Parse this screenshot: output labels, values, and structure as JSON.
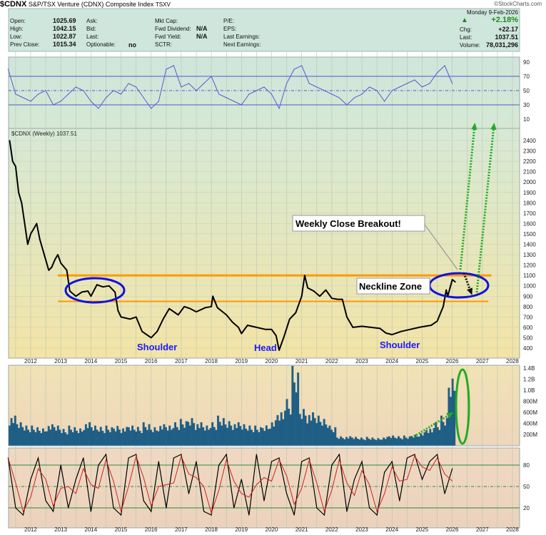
{
  "header": {
    "symbol": "$CDNX",
    "name": "S&P/TSX Venture (CDNX) Composite Index",
    "exchange": "TSXV",
    "logo": "©StockCharts.com"
  },
  "quote": {
    "open_label": "Open:",
    "open": "1025.69",
    "high_label": "High:",
    "high": "1042.15",
    "low_label": "Low:",
    "low": "1022.87",
    "prev_label": "Prev Close:",
    "prev": "1015.34",
    "ask_label": "Ask:",
    "bid_label": "Bid:",
    "last_label2": "Last:",
    "optionable_label": "Optionable:",
    "optionable": "no",
    "mktcap_label": "Mkt Cap:",
    "fwddiv_label": "Fwd Dividend:",
    "fwddiv": "N/A",
    "fwdyield_label": "Fwd Yield:",
    "fwdyield": "N/A",
    "sctr_label": "SCTR:",
    "pe_label": "P/E:",
    "eps_label": "EPS:",
    "lastearn_label": "Last Earnings:",
    "nextearn_label": "Next Earnings:",
    "date": "Monday  9-Feb-2026",
    "pct": "+2.18%",
    "chg_label": "Chg:",
    "chg": "+22.17",
    "last_label": "Last:",
    "last": "1037.51",
    "vol_label": "Volume:",
    "volume": "78,031,296",
    "up_arrow_icon": "triangle-up"
  },
  "chart_data": {
    "type": "line",
    "x_ticks": [
      "2012",
      "2013",
      "2014",
      "2015",
      "2016",
      "2017",
      "2018",
      "2019",
      "2020",
      "2021",
      "2022",
      "2023",
      "2024",
      "2025",
      "2026",
      "2027",
      "2028"
    ],
    "price": {
      "label": "$CDNX (Weekly) 1037.51",
      "scale": "linear",
      "ylim": [
        330,
        2480
      ],
      "y_ticks": [
        400,
        500,
        600,
        700,
        800,
        900,
        1000,
        1100,
        1200,
        1300,
        1400,
        1500,
        1600,
        1700,
        1800,
        1900,
        2000,
        2100,
        2200,
        2300,
        2400
      ],
      "color": "#000000",
      "points": [
        [
          2011.3,
          2400
        ],
        [
          2011.4,
          2200
        ],
        [
          2011.5,
          2150
        ],
        [
          2011.6,
          1900
        ],
        [
          2011.7,
          1800
        ],
        [
          2011.8,
          1600
        ],
        [
          2011.9,
          1400
        ],
        [
          2012.0,
          1500
        ],
        [
          2012.1,
          1550
        ],
        [
          2012.2,
          1600
        ],
        [
          2012.3,
          1450
        ],
        [
          2012.4,
          1350
        ],
        [
          2012.5,
          1250
        ],
        [
          2012.6,
          1150
        ],
        [
          2012.7,
          1180
        ],
        [
          2012.8,
          1250
        ],
        [
          2012.9,
          1300
        ],
        [
          2013.0,
          1220
        ],
        [
          2013.2,
          1150
        ],
        [
          2013.3,
          950
        ],
        [
          2013.5,
          900
        ],
        [
          2013.7,
          940
        ],
        [
          2013.9,
          950
        ],
        [
          2014.0,
          900
        ],
        [
          2014.2,
          1010
        ],
        [
          2014.4,
          990
        ],
        [
          2014.6,
          1000
        ],
        [
          2014.8,
          940
        ],
        [
          2014.9,
          760
        ],
        [
          2015.0,
          700
        ],
        [
          2015.3,
          680
        ],
        [
          2015.5,
          700
        ],
        [
          2015.7,
          560
        ],
        [
          2015.9,
          520
        ],
        [
          2016.0,
          500
        ],
        [
          2016.2,
          560
        ],
        [
          2016.4,
          680
        ],
        [
          2016.6,
          780
        ],
        [
          2016.8,
          740
        ],
        [
          2016.9,
          720
        ],
        [
          2017.1,
          800
        ],
        [
          2017.3,
          780
        ],
        [
          2017.5,
          750
        ],
        [
          2017.8,
          790
        ],
        [
          2018.0,
          800
        ],
        [
          2018.05,
          900
        ],
        [
          2018.2,
          790
        ],
        [
          2018.5,
          720
        ],
        [
          2018.7,
          650
        ],
        [
          2018.9,
          600
        ],
        [
          2019.0,
          540
        ],
        [
          2019.2,
          620
        ],
        [
          2019.5,
          600
        ],
        [
          2019.8,
          580
        ],
        [
          2020.0,
          580
        ],
        [
          2020.15,
          520
        ],
        [
          2020.25,
          380
        ],
        [
          2020.4,
          500
        ],
        [
          2020.6,
          680
        ],
        [
          2020.8,
          740
        ],
        [
          2021.0,
          900
        ],
        [
          2021.1,
          1100
        ],
        [
          2021.2,
          980
        ],
        [
          2021.4,
          950
        ],
        [
          2021.6,
          900
        ],
        [
          2021.8,
          960
        ],
        [
          2022.0,
          880
        ],
        [
          2022.2,
          870
        ],
        [
          2022.35,
          870
        ],
        [
          2022.5,
          700
        ],
        [
          2022.7,
          600
        ],
        [
          2023.0,
          610
        ],
        [
          2023.3,
          600
        ],
        [
          2023.6,
          590
        ],
        [
          2023.8,
          545
        ],
        [
          2024.0,
          530
        ],
        [
          2024.3,
          560
        ],
        [
          2024.6,
          580
        ],
        [
          2024.9,
          600
        ],
        [
          2025.1,
          610
        ],
        [
          2025.3,
          620
        ],
        [
          2025.5,
          660
        ],
        [
          2025.7,
          800
        ],
        [
          2025.8,
          960
        ],
        [
          2025.85,
          900
        ],
        [
          2026.0,
          1060
        ],
        [
          2026.1,
          1037.51
        ]
      ]
    },
    "rsi": {
      "ylim": [
        0,
        100
      ],
      "y_ticks": [
        10,
        30,
        50,
        70,
        90
      ],
      "levels": [
        30,
        50,
        70
      ],
      "color": "#5a5ad0",
      "x": [
        2011.25,
        2011.5,
        2011.75,
        2012.0,
        2012.25,
        2012.5,
        2012.75,
        2013.0,
        2013.25,
        2013.5,
        2013.75,
        2014.0,
        2014.25,
        2014.5,
        2014.75,
        2015.0,
        2015.25,
        2015.5,
        2015.75,
        2016.0,
        2016.25,
        2016.5,
        2016.75,
        2017.0,
        2017.25,
        2017.5,
        2017.75,
        2018.0,
        2018.25,
        2018.5,
        2018.75,
        2019.0,
        2019.25,
        2019.5,
        2019.75,
        2020.0,
        2020.25,
        2020.5,
        2020.75,
        2021.0,
        2021.25,
        2021.5,
        2021.75,
        2022.0,
        2022.25,
        2022.5,
        2022.75,
        2023.0,
        2023.25,
        2023.5,
        2023.75,
        2024.0,
        2024.25,
        2024.5,
        2024.75,
        2025.0,
        2025.25,
        2025.5,
        2025.75,
        2026.0
      ],
      "values": [
        80,
        45,
        40,
        35,
        45,
        50,
        30,
        35,
        45,
        55,
        50,
        35,
        25,
        40,
        50,
        45,
        60,
        55,
        40,
        25,
        35,
        80,
        85,
        55,
        60,
        50,
        60,
        70,
        45,
        40,
        35,
        30,
        45,
        50,
        55,
        45,
        25,
        60,
        80,
        85,
        60,
        55,
        50,
        45,
        40,
        30,
        40,
        45,
        55,
        50,
        35,
        50,
        55,
        60,
        65,
        55,
        60,
        75,
        85,
        60
      ]
    },
    "volume": {
      "ylim": [
        0,
        1400
      ],
      "unit": "M",
      "y_tick_labels": [
        "200M",
        "400M",
        "600M",
        "800M",
        "1.0B",
        "1.2B",
        "1.4B"
      ],
      "y_ticks": [
        200,
        400,
        600,
        800,
        1000,
        1200,
        1400
      ],
      "color": "#1f5f86",
      "values": [
        450,
        350,
        300,
        300,
        280,
        320,
        300,
        250,
        300,
        280,
        350,
        300,
        280,
        300,
        320,
        280,
        300,
        280,
        350,
        300,
        320,
        300,
        350,
        400,
        450,
        350,
        300,
        350,
        450,
        400,
        350,
        320,
        300,
        300,
        330,
        380,
        500,
        700,
        1200,
        600,
        500,
        450,
        400,
        300,
        150,
        140,
        130,
        120,
        130,
        120,
        130,
        150,
        140,
        150,
        180,
        200,
        250,
        350,
        450,
        1100
      ]
    },
    "stochastic": {
      "ylim": [
        0,
        100
      ],
      "y_ticks": [
        20,
        50,
        80
      ],
      "levels": [
        20,
        50,
        80
      ],
      "colors": [
        "#000000",
        "#d02020"
      ],
      "values": [
        90,
        20,
        10,
        60,
        90,
        30,
        15,
        80,
        20,
        60,
        90,
        15,
        80,
        95,
        20,
        10,
        90,
        95,
        30,
        15,
        85,
        20,
        90,
        95,
        40,
        85,
        15,
        10,
        80,
        95,
        20,
        60,
        10,
        95,
        30,
        85,
        90,
        40,
        10,
        85,
        90,
        20,
        10,
        80,
        95,
        15,
        60,
        85,
        20,
        10,
        70,
        85,
        30,
        90,
        95,
        60,
        85,
        95,
        40,
        75
      ]
    },
    "annotations": {
      "neckline_upper": 1100,
      "neckline_lower": 850,
      "callout": "Weekly Close Breakout!",
      "neckline_label": "Neckline Zone",
      "labels": [
        "Shoulder",
        "Head",
        "Shoulder"
      ],
      "colors": {
        "neckline": "#ff9900",
        "ellipse": "#1010e0",
        "arrow": "#22aa22",
        "label": "#1a1aff"
      }
    }
  }
}
